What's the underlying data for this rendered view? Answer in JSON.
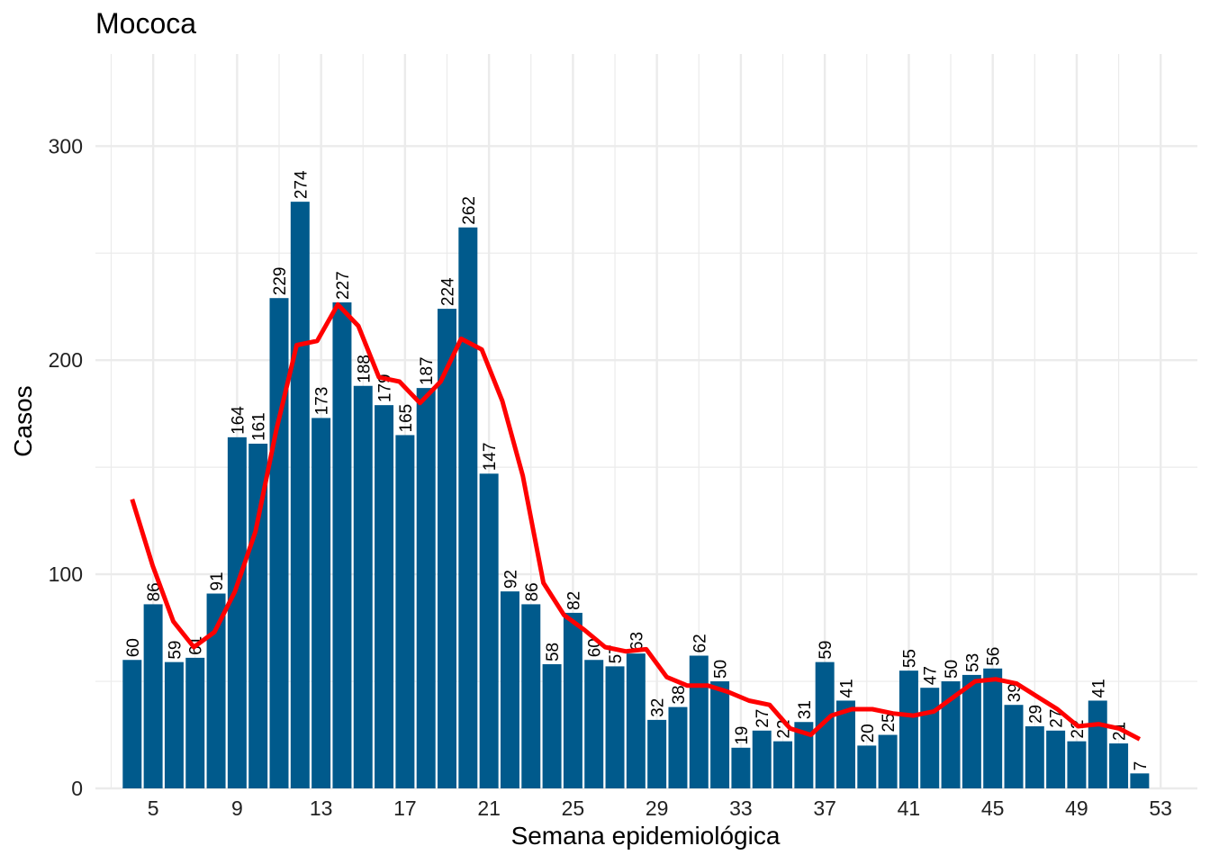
{
  "chart_data": {
    "type": "bar",
    "title": "Mococa",
    "xlabel": "Semana epidemiológica",
    "ylabel": "Casos",
    "x": [
      4,
      5,
      6,
      7,
      8,
      9,
      10,
      11,
      12,
      13,
      14,
      15,
      16,
      17,
      18,
      19,
      20,
      21,
      22,
      23,
      24,
      25,
      26,
      27,
      28,
      29,
      30,
      31,
      32,
      33,
      34,
      35,
      36,
      37,
      38,
      39,
      40,
      41,
      42,
      43,
      44,
      45,
      46,
      47,
      48,
      49,
      50,
      51,
      52
    ],
    "values": [
      60,
      86,
      59,
      61,
      91,
      164,
      161,
      229,
      274,
      173,
      227,
      188,
      179,
      165,
      187,
      224,
      262,
      147,
      92,
      86,
      58,
      82,
      60,
      57,
      63,
      32,
      38,
      62,
      50,
      19,
      27,
      22,
      31,
      59,
      41,
      20,
      25,
      55,
      47,
      50,
      53,
      56,
      39,
      29,
      27,
      22,
      41,
      21,
      7
    ],
    "trend": [
      135,
      104,
      78,
      66,
      73,
      92,
      120,
      167,
      207,
      209,
      226,
      216,
      192,
      190,
      180,
      190,
      210,
      205,
      181,
      146,
      96,
      81,
      74,
      66,
      64,
      65,
      52,
      48,
      48,
      45,
      41,
      39,
      28,
      25,
      34,
      37,
      37,
      35,
      34,
      36,
      43,
      50,
      51,
      49,
      43,
      37,
      29,
      30,
      28,
      23
    ],
    "x_ticks": [
      5,
      9,
      13,
      17,
      21,
      25,
      29,
      33,
      37,
      41,
      45,
      49,
      53
    ],
    "y_ticks": [
      0,
      100,
      200,
      300
    ],
    "xlim": [
      2.25,
      54.75
    ],
    "ylim": [
      0,
      330
    ],
    "grid": true,
    "bar_color": "#005a8c",
    "trend_color": "#ff0000",
    "gridline_color": "#ebebeb"
  }
}
